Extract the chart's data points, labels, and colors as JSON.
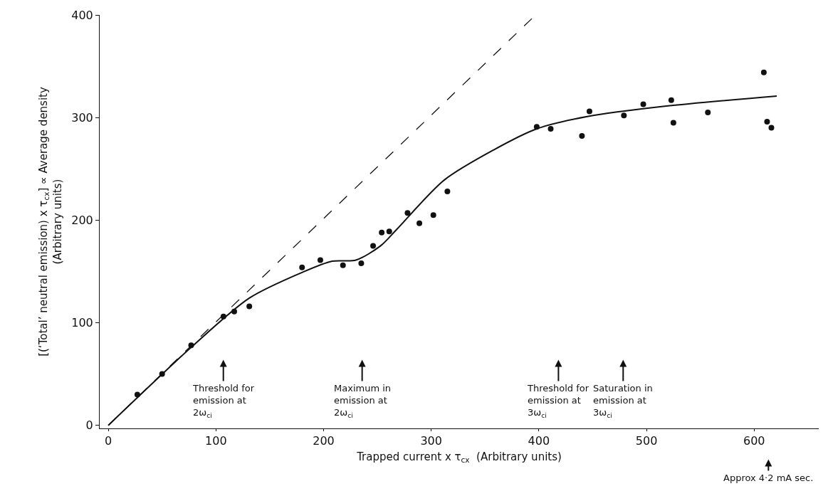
{
  "chart_data": {
    "type": "scatter",
    "xlabel": "Trapped current x τ$_{cx}$  (Arbitrary units)",
    "ylabel": "[(‘Total’ neutral emission) x τ$_{cx}$] ∝ Average density\n(Arbitrary units)",
    "xlim": [
      -8,
      660
    ],
    "ylim": [
      -3,
      400
    ],
    "xticks": [
      0,
      100,
      200,
      300,
      400,
      500,
      600
    ],
    "yticks": [
      0,
      100,
      200,
      300,
      400
    ],
    "series": [
      {
        "marker": "circle",
        "color": "#111111",
        "x": [
          27,
          50,
          77,
          107,
          117,
          131,
          180,
          197,
          218,
          235,
          246,
          254,
          261,
          278,
          289,
          302,
          315,
          398,
          411,
          440,
          447,
          479,
          497,
          523,
          525,
          557,
          609,
          612,
          616
        ],
        "values": [
          30,
          50,
          78,
          106,
          111,
          116,
          154,
          161,
          156,
          158,
          175,
          188,
          189,
          207,
          197,
          205,
          228,
          291,
          289,
          282,
          306,
          302,
          313,
          317,
          295,
          305,
          344,
          296,
          290
        ]
      },
      {
        "type": "line",
        "marker": "none",
        "line_style": "solid",
        "color": "#111111",
        "x": [
          0,
          77,
          131,
          180,
          208,
          230,
          253,
          268,
          312,
          359,
          398,
          445,
          517,
          621
        ],
        "values": [
          0,
          76,
          124,
          149,
          160,
          161,
          175,
          191,
          239,
          269,
          289,
          301,
          311,
          321
        ]
      },
      {
        "type": "line",
        "marker": "none",
        "line_style": "dashed",
        "color": "#111111",
        "x": [
          0,
          397
        ],
        "values": [
          0,
          400
        ]
      }
    ],
    "annotations": [
      "Threshold for\nemission at\n2ω$_{ci}$",
      "Maximum in\nemission at\n2ω$_{ci}$",
      "Threshold for\nemission at\n3ω$_{ci}$",
      "Saturation in\nemission at\n3ω$_{ci}$",
      "Approx 4·2 mA sec."
    ]
  }
}
